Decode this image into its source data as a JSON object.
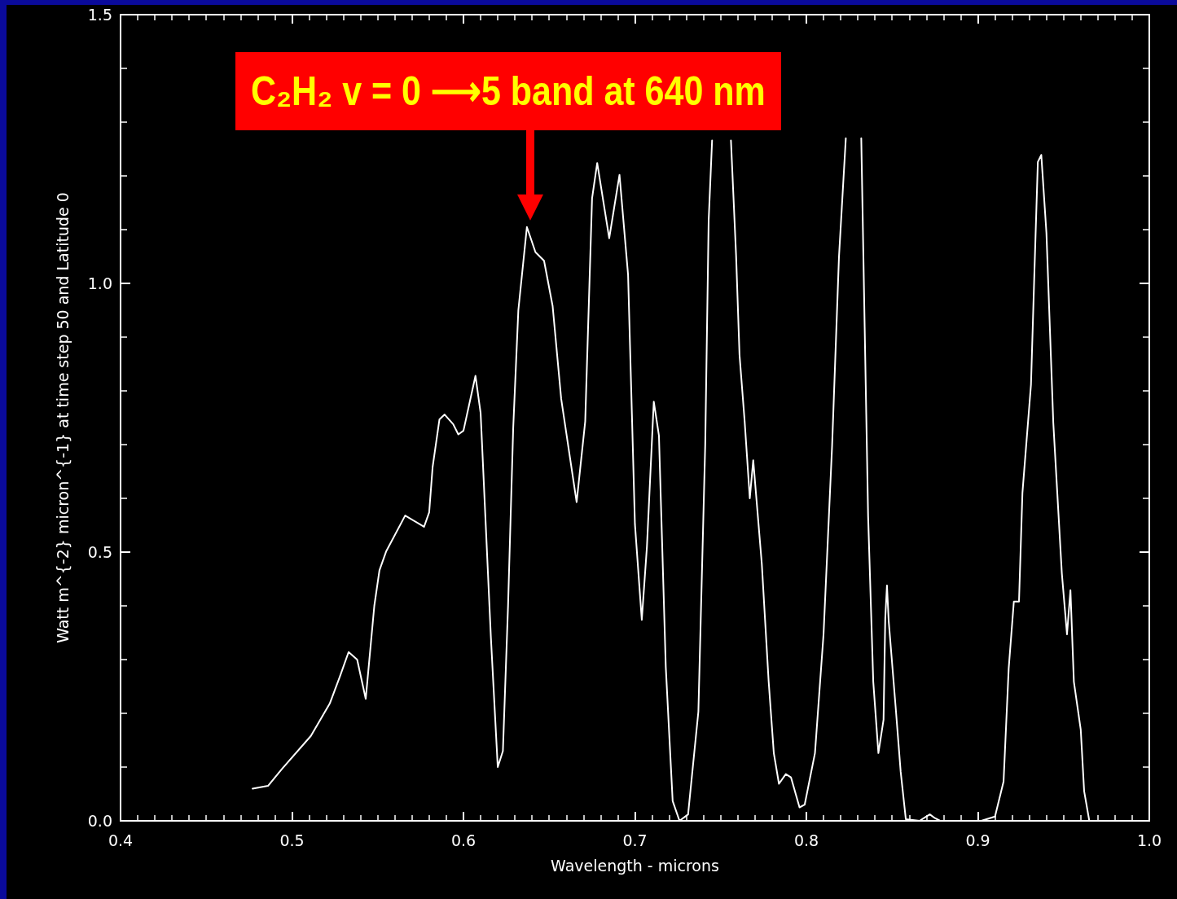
{
  "chart_data": {
    "type": "line",
    "xlabel": "Wavelength - microns",
    "ylabel": "Watt m^{-2} micron^{-1} at time step 50 and Latitude 0",
    "annotations": [
      {
        "text": "C₂H₂ v = 0 ⟶5 band at 640 nm",
        "x": 0.637,
        "y": 1.105
      }
    ],
    "xlim": [
      0.4,
      1.0
    ],
    "xticks": [
      {
        "value": 0.4,
        "label": "0.4"
      },
      {
        "value": 0.5,
        "label": "0.5"
      },
      {
        "value": 0.6,
        "label": "0.6"
      },
      {
        "value": 0.7,
        "label": "0.7"
      },
      {
        "value": 0.8,
        "label": "0.8"
      },
      {
        "value": 0.9,
        "label": "0.9"
      },
      {
        "value": 1.0,
        "label": "1.0"
      }
    ],
    "ylim": [
      0,
      1.5
    ],
    "yticks": [
      {
        "value": 0,
        "label": "0.0"
      },
      {
        "value": 0.5,
        "label": "0.5"
      },
      {
        "value": 1.0,
        "label": "1.0"
      },
      {
        "value": 1.5,
        "label": "1.5"
      }
    ],
    "grid": false,
    "marker": "none",
    "line_style": "solid",
    "series": [
      {
        "color": "#ffffff",
        "x": [
          0.477,
          0.486,
          0.494,
          0.511,
          0.522,
          0.528,
          0.533,
          0.538,
          0.543,
          0.548,
          0.551,
          0.555,
          0.566,
          0.577,
          0.58,
          0.582,
          0.586,
          0.589,
          0.594,
          0.597,
          0.6,
          0.607,
          0.61,
          0.613,
          0.616,
          0.62,
          0.623,
          0.626,
          0.629,
          0.632,
          0.637,
          0.642,
          0.647,
          0.652,
          0.657,
          0.666,
          0.671,
          0.675,
          0.678,
          0.685,
          0.691,
          0.696,
          0.7,
          0.704,
          0.707,
          0.711,
          0.714,
          0.718,
          0.722,
          0.726,
          0.731,
          0.737,
          0.741,
          0.743,
          0.745,
          0.75,
          0.756,
          0.759,
          0.761,
          0.764,
          0.767,
          0.769,
          0.774,
          0.778,
          0.781,
          0.784,
          0.788,
          0.791,
          0.796,
          0.799,
          0.805,
          0.81,
          0.815,
          0.819,
          0.823,
          0.828,
          0.832,
          0.834,
          0.836,
          0.839,
          0.842,
          0.845,
          0.846,
          0.847,
          0.848,
          0.852,
          0.855,
          0.858,
          0.866,
          0.87,
          0.872,
          0.875,
          0.878,
          0.902,
          0.91,
          0.915,
          0.918,
          0.921,
          0.924,
          0.926,
          0.931,
          0.933,
          0.935,
          0.937,
          0.94,
          0.944,
          0.949,
          0.952,
          0.954,
          0.956,
          0.96,
          0.962,
          0.965
        ],
        "values": [
          0.06,
          0.065,
          0.096,
          0.158,
          0.218,
          0.269,
          0.314,
          0.3,
          0.227,
          0.4,
          0.466,
          0.502,
          0.568,
          0.547,
          0.574,
          0.658,
          0.747,
          0.756,
          0.738,
          0.719,
          0.726,
          0.828,
          0.759,
          0.55,
          0.341,
          0.1,
          0.13,
          0.4,
          0.73,
          0.95,
          1.105,
          1.058,
          1.042,
          0.958,
          0.785,
          0.593,
          0.743,
          1.158,
          1.224,
          1.084,
          1.202,
          1.016,
          0.552,
          0.374,
          0.51,
          0.78,
          0.717,
          0.286,
          0.037,
          0,
          0.012,
          0.203,
          0.7,
          1.117,
          1.266,
          null,
          1.266,
          1.052,
          0.867,
          0.743,
          0.6,
          0.671,
          0.478,
          0.259,
          0.126,
          0.069,
          0.087,
          0.081,
          0.025,
          0.03,
          0.126,
          0.347,
          0.698,
          1.049,
          1.27,
          null,
          1.27,
          0.918,
          0.567,
          0.259,
          0.126,
          0.188,
          0.377,
          0.438,
          0.372,
          0.214,
          0.091,
          0.003,
          0,
          0.008,
          0.012,
          0.005,
          0,
          0,
          0.008,
          0.073,
          0.284,
          0.408,
          0.408,
          0.61,
          0.812,
          1.022,
          1.226,
          1.239,
          1.094,
          0.741,
          0.46,
          0.347,
          0.429,
          0.259,
          0.17,
          0.055,
          0
        ]
      }
    ]
  }
}
